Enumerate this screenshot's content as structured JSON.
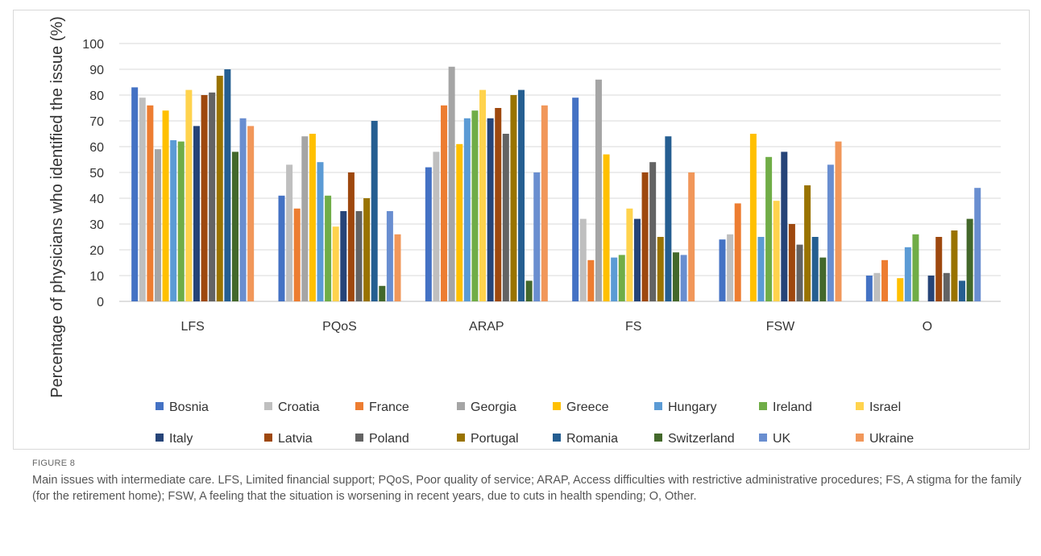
{
  "figure": {
    "label": "FIGURE 8",
    "caption": "Main issues with intermediate care. LFS, Limited financial support; PQoS, Poor quality of service; ARAP, Access difficulties with restrictive administrative procedures; FS, A stigma for the family (for the retirement home); FSW, A feeling that the situation is worsening in recent years, due to cuts in health spending; O, Other."
  },
  "chart_data": {
    "type": "bar",
    "title": "",
    "xlabel": "",
    "ylabel": "Percentage of physicians who identified the issue (%)",
    "ylim": [
      0,
      100
    ],
    "yticks": [
      0,
      10,
      20,
      30,
      40,
      50,
      60,
      70,
      80,
      90,
      100
    ],
    "grid": true,
    "legend_position": "bottom",
    "categories": [
      "LFS",
      "PQoS",
      "ARAP",
      "FS",
      "FSW",
      "O"
    ],
    "series": [
      {
        "name": "Bosnia",
        "color": "#4472c4",
        "values": [
          83,
          41,
          52,
          79,
          24,
          10
        ]
      },
      {
        "name": "Croatia",
        "color": "#bfbfbf",
        "values": [
          79,
          53,
          58,
          32,
          26,
          11
        ]
      },
      {
        "name": "France",
        "color": "#ed7d31",
        "values": [
          76,
          36,
          76,
          16,
          38,
          16
        ]
      },
      {
        "name": "Georgia",
        "color": "#a5a5a5",
        "values": [
          59,
          64,
          91,
          86,
          0,
          0
        ]
      },
      {
        "name": "Greece",
        "color": "#ffc000",
        "values": [
          74,
          65,
          61,
          57,
          65,
          9
        ]
      },
      {
        "name": "Hungary",
        "color": "#5b9bd5",
        "values": [
          62.5,
          54,
          71,
          17,
          25,
          21
        ]
      },
      {
        "name": "Ireland",
        "color": "#70ad47",
        "values": [
          62,
          41,
          74,
          18,
          56,
          26
        ]
      },
      {
        "name": "Israel",
        "color": "#ffd34d",
        "values": [
          82,
          29,
          82,
          36,
          39,
          0
        ]
      },
      {
        "name": "Italy",
        "color": "#264478",
        "values": [
          68,
          35,
          71,
          32,
          58,
          10
        ]
      },
      {
        "name": "Latvia",
        "color": "#9e480e",
        "values": [
          80,
          50,
          75,
          50,
          30,
          25
        ]
      },
      {
        "name": "Poland",
        "color": "#636363",
        "values": [
          81,
          35,
          65,
          54,
          22,
          11
        ]
      },
      {
        "name": "Portugal",
        "color": "#997300",
        "values": [
          87.5,
          40,
          80,
          25,
          45,
          27.5
        ]
      },
      {
        "name": "Romania",
        "color": "#255e91",
        "values": [
          90,
          70,
          82,
          64,
          25,
          8
        ]
      },
      {
        "name": "Switzerland",
        "color": "#43682b",
        "values": [
          58,
          6,
          8,
          19,
          17,
          32
        ]
      },
      {
        "name": "UK",
        "color": "#698ed0",
        "values": [
          71,
          35,
          50,
          18,
          53,
          44
        ]
      },
      {
        "name": "Ukraine",
        "color": "#f1975a",
        "values": [
          68,
          26,
          76,
          50,
          62,
          0
        ]
      }
    ]
  }
}
